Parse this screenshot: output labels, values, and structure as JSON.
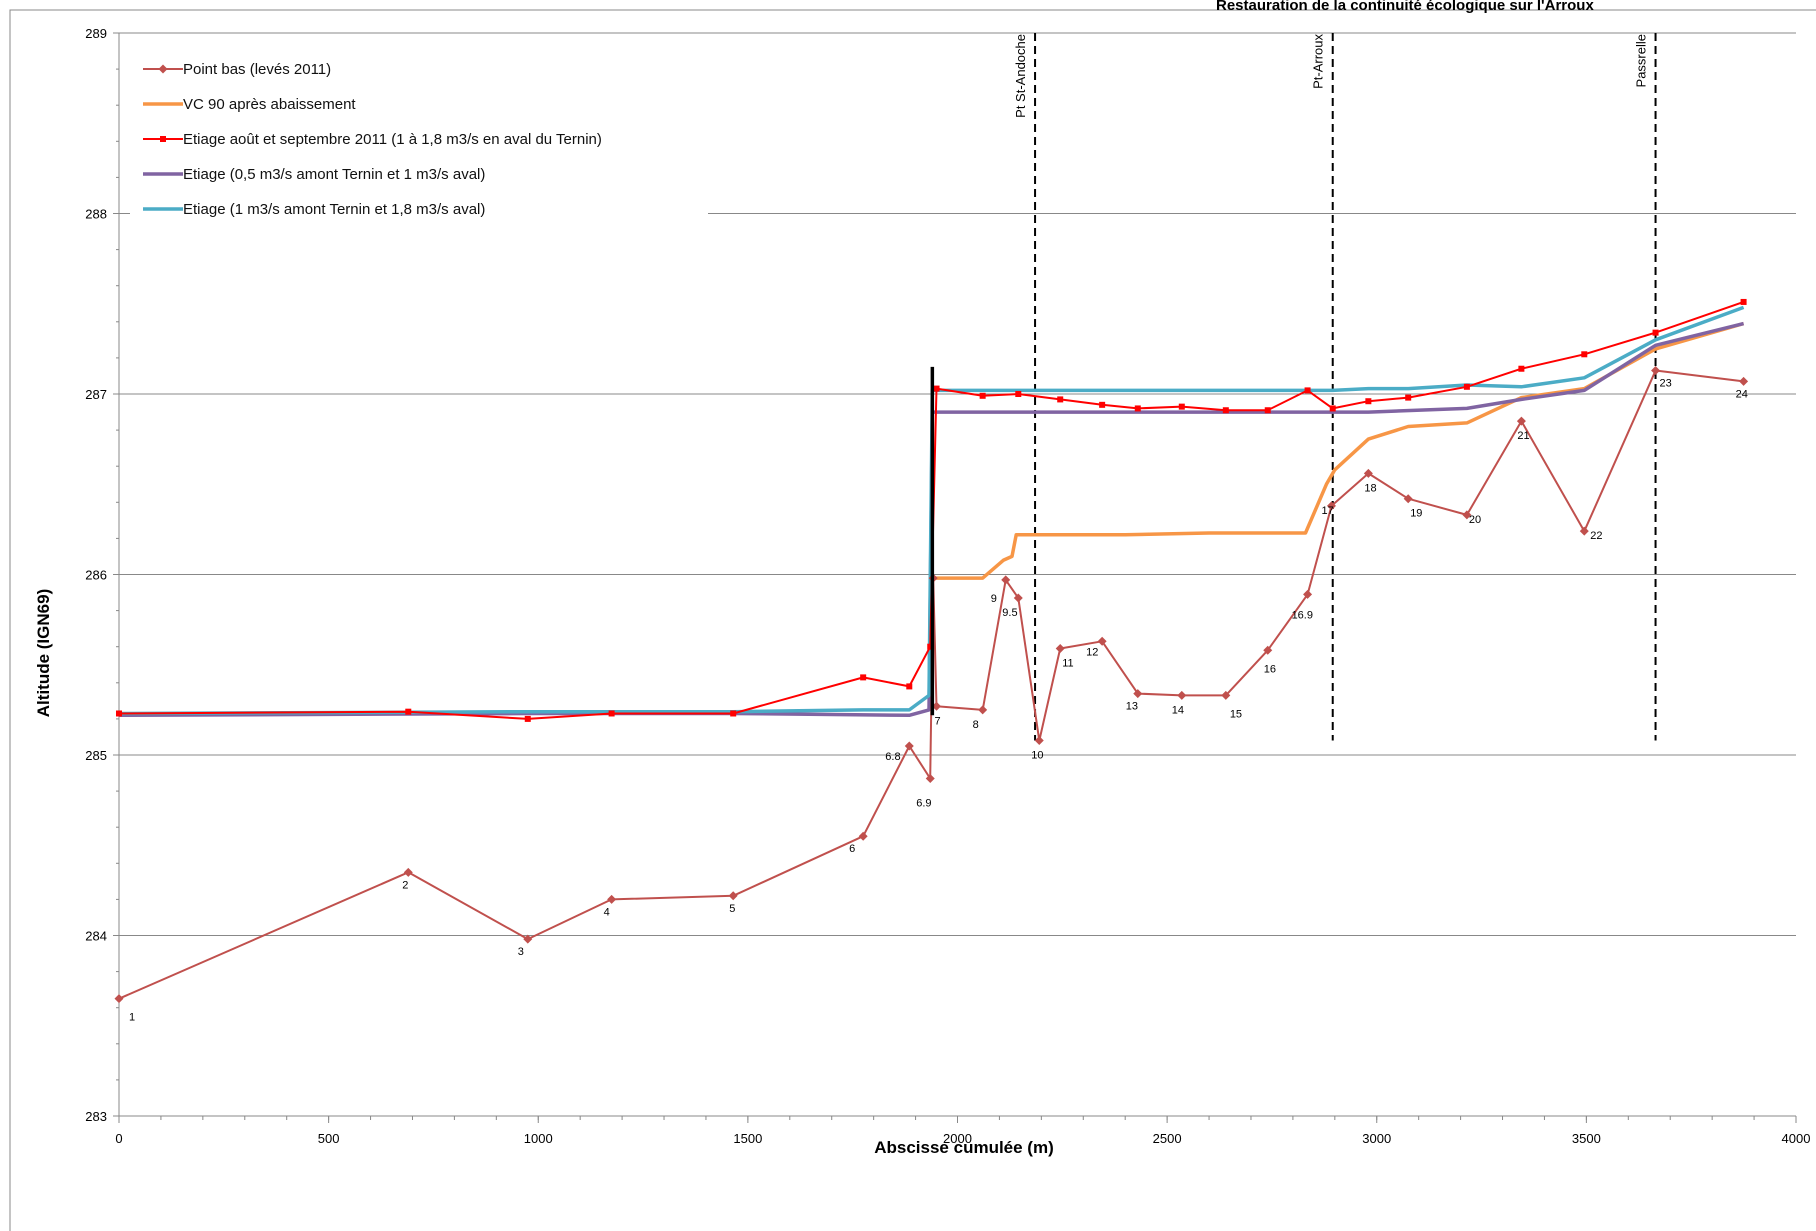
{
  "header": {
    "title": "Restauration de la continuité écologique sur l'Arroux"
  },
  "chart_data": {
    "type": "line",
    "xlabel": "Abscisse cumulée (m)",
    "ylabel": "Altitude (IGN69)",
    "xlim": [
      0,
      4000
    ],
    "ylim": [
      283,
      289
    ],
    "x_ticks": [
      "0",
      "500",
      "1000",
      "1500",
      "2000",
      "2500",
      "3000",
      "3500",
      "4000"
    ],
    "y_ticks": [
      "283",
      "284",
      "285",
      "286",
      "287",
      "288",
      "289"
    ],
    "grid": "horizontal",
    "legend_position": "top-left",
    "vertical_markers": [
      {
        "label": "Pt St-Andoche",
        "x": 2185
      },
      {
        "label": "Pt-Arroux",
        "x": 2895
      },
      {
        "label": "Passrelle",
        "x": 3665
      }
    ],
    "weir": {
      "x": 1940,
      "y_from": 285.22,
      "y_to": 287.15,
      "color": "#000000"
    },
    "series": [
      {
        "name": "Point bas (levés 2011)",
        "color": "#c0504d",
        "marker": "diamond",
        "points": [
          [
            0,
            283.65,
            "1"
          ],
          [
            690,
            284.35,
            "2"
          ],
          [
            975,
            283.98,
            "3"
          ],
          [
            1175,
            284.2,
            "4"
          ],
          [
            1465,
            284.22,
            "5"
          ],
          [
            1775,
            284.55,
            "6"
          ],
          [
            1885,
            285.05,
            "6.8"
          ],
          [
            1935,
            284.87,
            "6.9"
          ],
          [
            1942,
            285.98,
            ""
          ],
          [
            1950,
            285.27,
            "7"
          ],
          [
            2060,
            285.25,
            "8"
          ],
          [
            2115,
            285.97,
            "9"
          ],
          [
            2145,
            285.87,
            "9.5"
          ],
          [
            2195,
            285.08,
            "10"
          ],
          [
            2245,
            285.59,
            "11"
          ],
          [
            2345,
            285.63,
            "12"
          ],
          [
            2430,
            285.34,
            "13"
          ],
          [
            2535,
            285.33,
            "14"
          ],
          [
            2640,
            285.33,
            "15"
          ],
          [
            2740,
            285.58,
            "16"
          ],
          [
            2835,
            285.89,
            "16.9"
          ],
          [
            2892,
            286.38,
            "17"
          ],
          [
            2980,
            286.56,
            "18"
          ],
          [
            3075,
            286.42,
            "19"
          ],
          [
            3215,
            286.33,
            "20"
          ],
          [
            3345,
            286.85,
            "21"
          ],
          [
            3495,
            286.24,
            "22"
          ],
          [
            3665,
            287.13,
            "23"
          ],
          [
            3875,
            287.07,
            "24"
          ]
        ]
      },
      {
        "name": "VC 90 après abaissement",
        "color": "#f79646",
        "points": [
          [
            1942,
            285.98
          ],
          [
            2060,
            285.98
          ],
          [
            2110,
            286.08
          ],
          [
            2130,
            286.1
          ],
          [
            2140,
            286.22
          ],
          [
            2400,
            286.22
          ],
          [
            2600,
            286.23
          ],
          [
            2830,
            286.23
          ],
          [
            2880,
            286.5
          ],
          [
            2900,
            286.58
          ],
          [
            2980,
            286.75
          ],
          [
            3075,
            286.82
          ],
          [
            3215,
            286.84
          ],
          [
            3345,
            286.98
          ],
          [
            3495,
            287.03
          ],
          [
            3665,
            287.25
          ],
          [
            3875,
            287.39
          ]
        ]
      },
      {
        "name": "Etiage août et septembre 2011 (1 à 1,8 m3/s en aval du Ternin)",
        "color": "#ff0000",
        "marker": "square",
        "points": [
          [
            0,
            285.23
          ],
          [
            690,
            285.24
          ],
          [
            975,
            285.2
          ],
          [
            1175,
            285.23
          ],
          [
            1465,
            285.23
          ],
          [
            1775,
            285.43
          ],
          [
            1885,
            285.38
          ],
          [
            1935,
            285.6
          ],
          [
            1950,
            287.03
          ],
          [
            2060,
            286.99
          ],
          [
            2145,
            287.0
          ],
          [
            2245,
            286.97
          ],
          [
            2345,
            286.94
          ],
          [
            2430,
            286.92
          ],
          [
            2535,
            286.93
          ],
          [
            2640,
            286.91
          ],
          [
            2740,
            286.91
          ],
          [
            2835,
            287.02
          ],
          [
            2895,
            286.92
          ],
          [
            2980,
            286.96
          ],
          [
            3075,
            286.98
          ],
          [
            3215,
            287.04
          ],
          [
            3345,
            287.14
          ],
          [
            3495,
            287.22
          ],
          [
            3665,
            287.34
          ],
          [
            3875,
            287.51
          ]
        ]
      },
      {
        "name": "Etiage (0,5 m3/s amont Ternin et 1 m3/s aval)",
        "color": "#8064a2",
        "points": [
          [
            0,
            285.22
          ],
          [
            975,
            285.23
          ],
          [
            1465,
            285.23
          ],
          [
            1885,
            285.22
          ],
          [
            1932,
            285.25
          ],
          [
            1940,
            286.9
          ],
          [
            2895,
            286.9
          ],
          [
            2980,
            286.9
          ],
          [
            3215,
            286.92
          ],
          [
            3345,
            286.97
          ],
          [
            3495,
            287.02
          ],
          [
            3665,
            287.27
          ],
          [
            3875,
            287.39
          ]
        ]
      },
      {
        "name": "Etiage (1 m3/s amont Ternin et 1,8 m3/s aval)",
        "color": "#4bacc6",
        "points": [
          [
            0,
            285.23
          ],
          [
            975,
            285.24
          ],
          [
            1465,
            285.24
          ],
          [
            1775,
            285.25
          ],
          [
            1885,
            285.25
          ],
          [
            1932,
            285.33
          ],
          [
            1940,
            287.02
          ],
          [
            2895,
            287.02
          ],
          [
            2980,
            287.03
          ],
          [
            3075,
            287.03
          ],
          [
            3215,
            287.05
          ],
          [
            3345,
            287.04
          ],
          [
            3495,
            287.09
          ],
          [
            3665,
            287.3
          ],
          [
            3875,
            287.48
          ]
        ]
      }
    ]
  }
}
